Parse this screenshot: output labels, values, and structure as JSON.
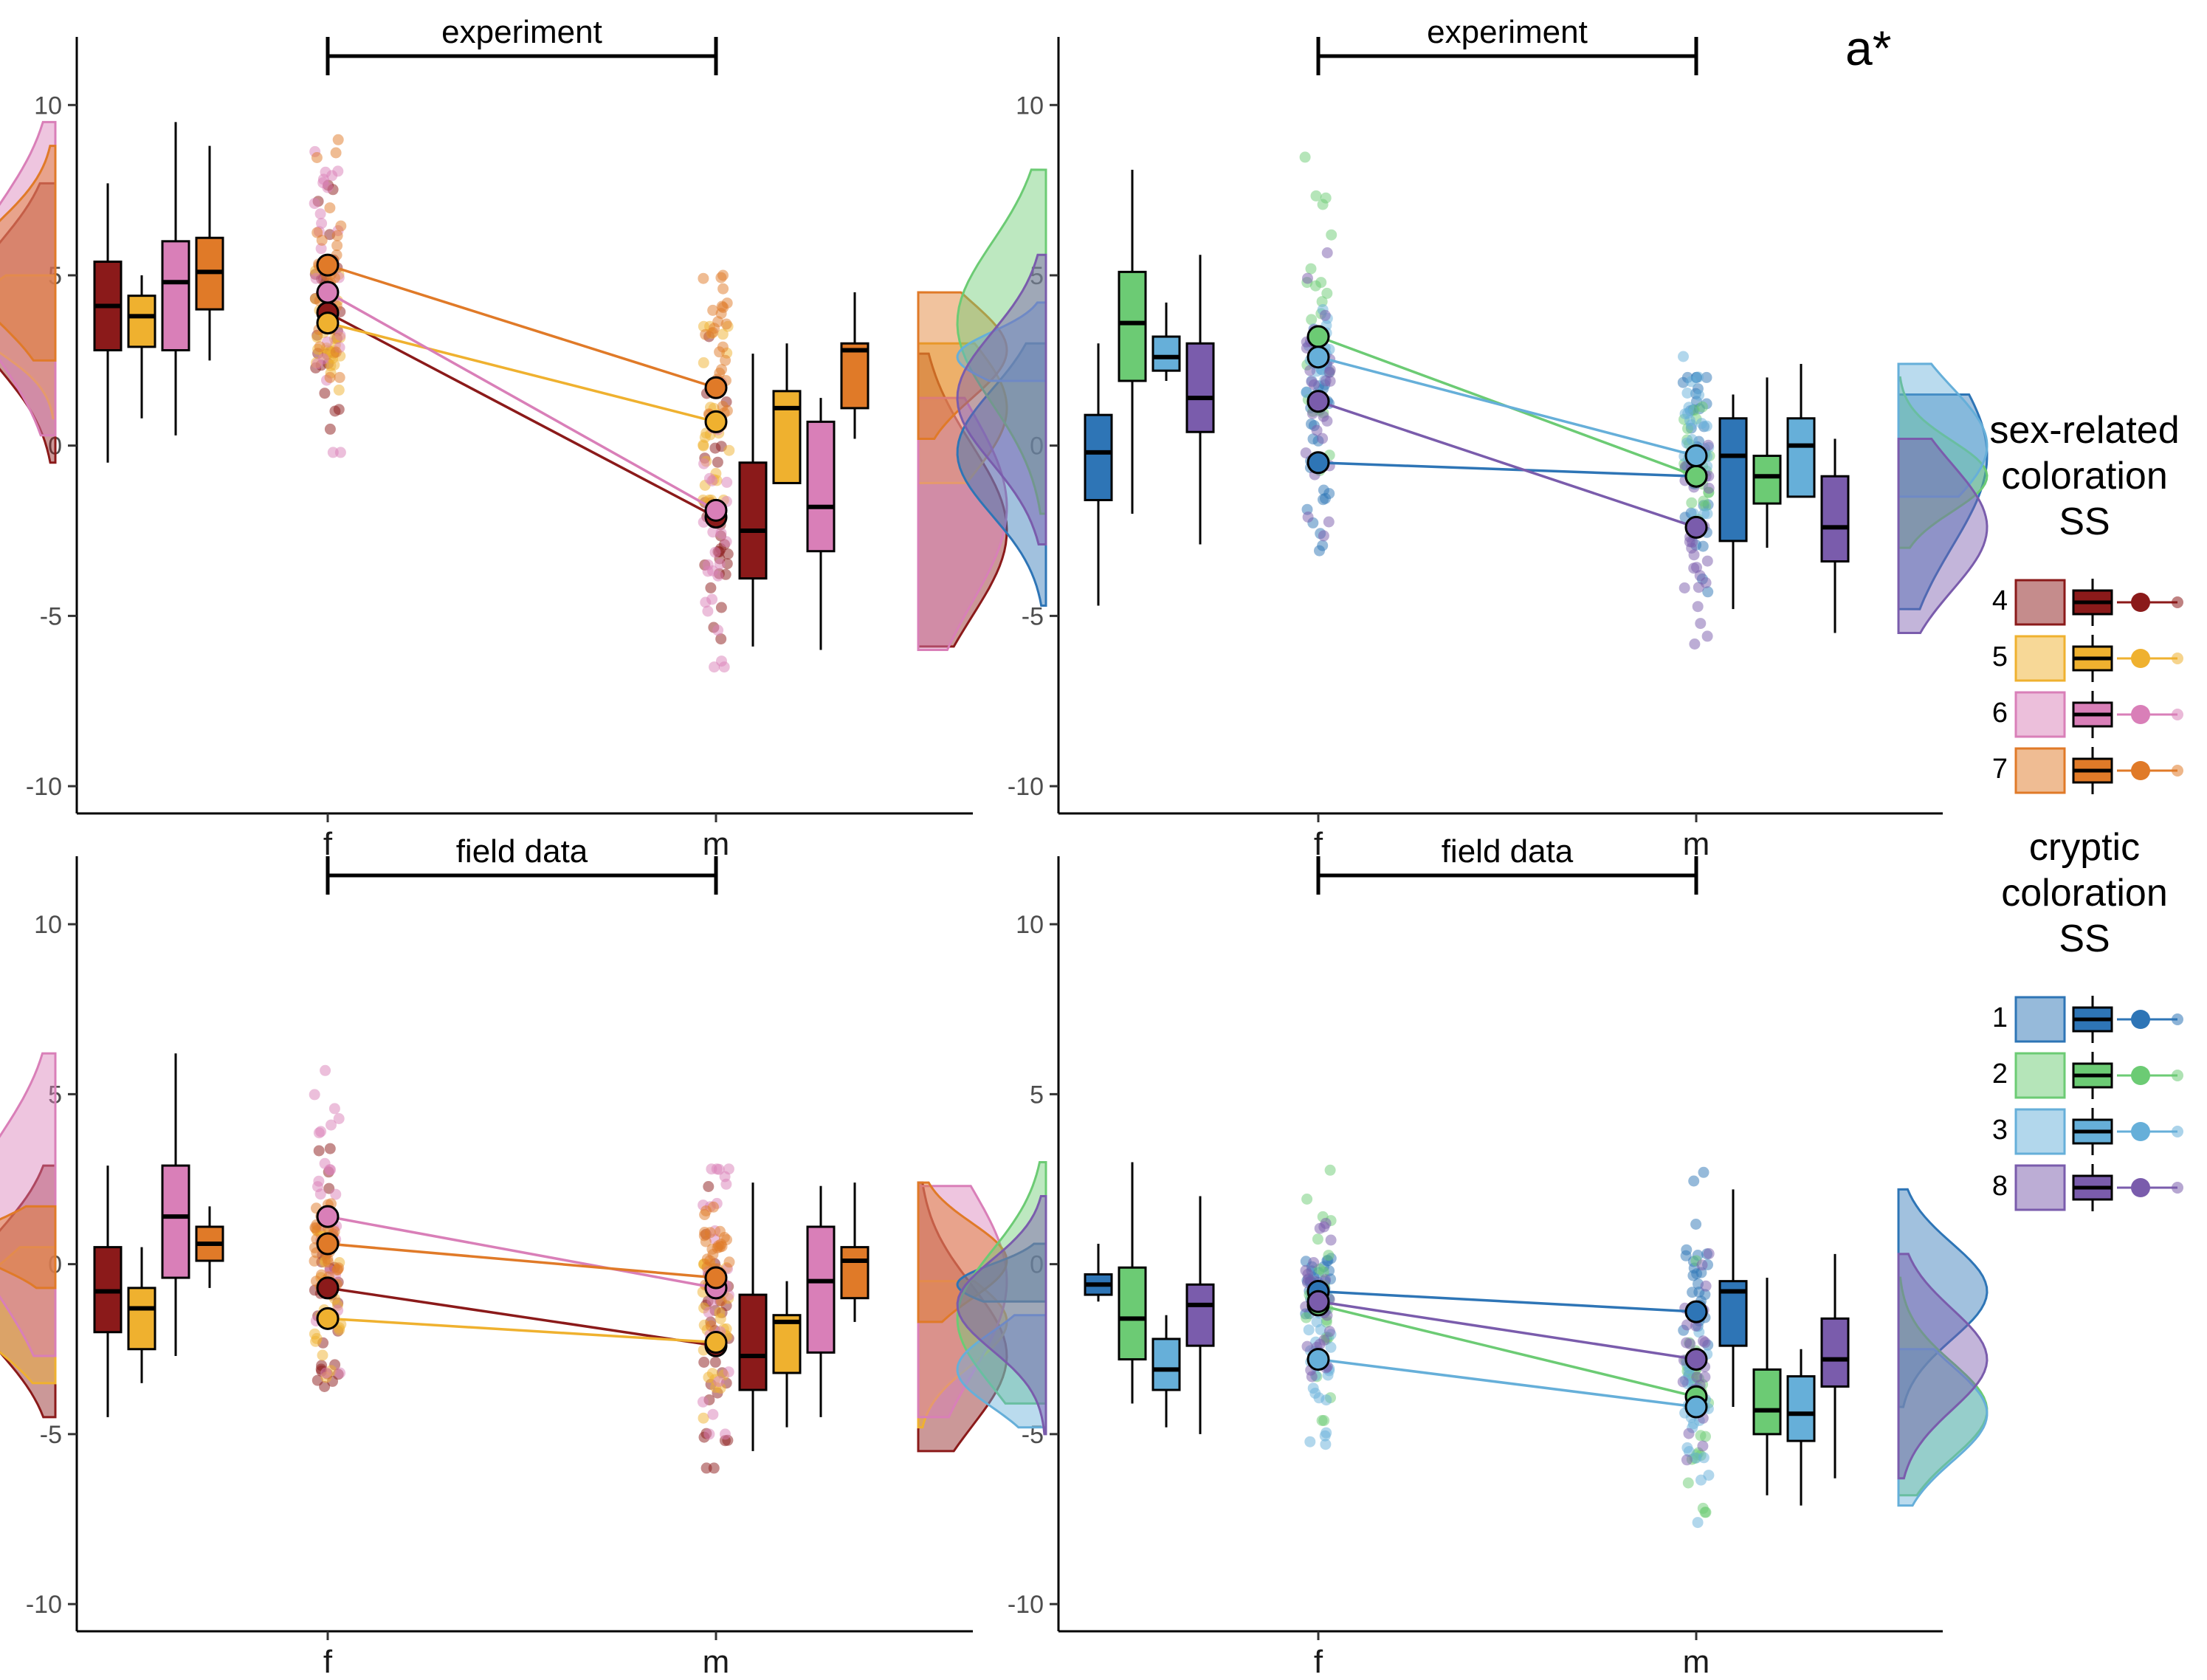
{
  "figure_tag": "a*",
  "colors": {
    "1": "#2e75b6",
    "2": "#6ccb74",
    "3": "#66afd9",
    "8": "#7a5cac",
    "4": "#8b1a1a",
    "5": "#efb12f",
    "6": "#d97fb8",
    "7": "#e07a28"
  },
  "legends": [
    {
      "id": "sex",
      "title_lines": [
        "sex-related",
        "coloration",
        "SS"
      ],
      "keys": [
        {
          "label": "4",
          "code": "4"
        },
        {
          "label": "5",
          "code": "5"
        },
        {
          "label": "6",
          "code": "6"
        },
        {
          "label": "7",
          "code": "7"
        }
      ]
    },
    {
      "id": "cryptic",
      "title_lines": [
        "cryptic",
        "coloration",
        "SS"
      ],
      "keys": [
        {
          "label": "1",
          "code": "1"
        },
        {
          "label": "2",
          "code": "2"
        },
        {
          "label": "3",
          "code": "3"
        },
        {
          "label": "8",
          "code": "8"
        }
      ]
    }
  ],
  "chart_data": [
    {
      "type": "box",
      "panel": "top-left",
      "bracket_label": "experiment",
      "categories": [
        "f",
        "m"
      ],
      "ylim": [
        -10.8,
        12
      ],
      "yticks": [
        -10,
        -5,
        0,
        5,
        10
      ],
      "series": [
        {
          "code": "4",
          "f": {
            "min": -0.5,
            "q1": 2.8,
            "median": 4.1,
            "q3": 5.4,
            "max": 7.7,
            "mean": 3.9
          },
          "m": {
            "min": -5.9,
            "q1": -3.9,
            "median": -2.5,
            "q3": -0.5,
            "max": 2.7,
            "mean": -2.1
          }
        },
        {
          "code": "5",
          "f": {
            "min": 0.8,
            "q1": 2.9,
            "median": 3.8,
            "q3": 4.4,
            "max": 5.0,
            "mean": 3.6
          },
          "m": {
            "min": -1.1,
            "q1": -1.1,
            "median": 1.1,
            "q3": 1.6,
            "max": 3.0,
            "mean": 0.7
          }
        },
        {
          "code": "6",
          "f": {
            "min": 0.3,
            "q1": 2.8,
            "median": 4.8,
            "q3": 6.0,
            "max": 9.5,
            "mean": 4.5
          },
          "m": {
            "min": -6.0,
            "q1": -3.1,
            "median": -1.8,
            "q3": 0.7,
            "max": 1.4,
            "mean": -1.9
          }
        },
        {
          "code": "7",
          "f": {
            "min": 2.5,
            "q1": 4.0,
            "median": 5.1,
            "q3": 6.1,
            "max": 8.8,
            "mean": 5.3
          },
          "m": {
            "min": 0.2,
            "q1": 1.1,
            "median": 2.8,
            "q3": 3.0,
            "max": 4.5,
            "mean": 1.7
          }
        }
      ]
    },
    {
      "type": "box",
      "panel": "top-right",
      "bracket_label": "experiment",
      "categories": [
        "f",
        "m"
      ],
      "ylim": [
        -10.8,
        12
      ],
      "yticks": [
        -10,
        -5,
        0,
        5,
        10
      ],
      "series": [
        {
          "code": "1",
          "f": {
            "min": -4.7,
            "q1": -1.6,
            "median": -0.2,
            "q3": 0.9,
            "max": 3.0,
            "mean": -0.5
          },
          "m": {
            "min": -4.8,
            "q1": -2.8,
            "median": -0.3,
            "q3": 0.8,
            "max": 1.5,
            "mean": -0.9
          }
        },
        {
          "code": "2",
          "f": {
            "min": -2.0,
            "q1": 1.9,
            "median": 3.6,
            "q3": 5.1,
            "max": 8.1,
            "mean": 3.2
          },
          "m": {
            "min": -3.0,
            "q1": -1.7,
            "median": -0.9,
            "q3": -0.3,
            "max": 2.0,
            "mean": -0.9
          }
        },
        {
          "code": "3",
          "f": {
            "min": 1.9,
            "q1": 2.2,
            "median": 2.6,
            "q3": 3.2,
            "max": 4.2,
            "mean": 2.6
          },
          "m": {
            "min": -1.5,
            "q1": -1.5,
            "median": 0.0,
            "q3": 0.8,
            "max": 2.4,
            "mean": -0.3
          }
        },
        {
          "code": "8",
          "f": {
            "min": -2.9,
            "q1": 0.4,
            "median": 1.4,
            "q3": 3.0,
            "max": 5.6,
            "mean": 1.3
          },
          "m": {
            "min": -5.5,
            "q1": -3.4,
            "median": -2.4,
            "q3": -0.9,
            "max": 0.2,
            "mean": -2.4
          }
        }
      ]
    },
    {
      "type": "box",
      "panel": "bottom-left",
      "bracket_label": "field data",
      "categories": [
        "f",
        "m"
      ],
      "ylim": [
        -10.8,
        12
      ],
      "yticks": [
        -10,
        -5,
        0,
        5,
        10
      ],
      "series": [
        {
          "code": "4",
          "f": {
            "min": -4.5,
            "q1": -2.0,
            "median": -0.8,
            "q3": 0.5,
            "max": 2.9,
            "mean": -0.7
          },
          "m": {
            "min": -5.5,
            "q1": -3.7,
            "median": -2.7,
            "q3": -0.9,
            "max": 2.4,
            "mean": -2.4
          }
        },
        {
          "code": "5",
          "f": {
            "min": -3.5,
            "q1": -2.5,
            "median": -1.3,
            "q3": -0.7,
            "max": 0.5,
            "mean": -1.6
          },
          "m": {
            "min": -4.8,
            "q1": -3.2,
            "median": -1.7,
            "q3": -1.5,
            "max": -0.5,
            "mean": -2.3
          }
        },
        {
          "code": "6",
          "f": {
            "min": -2.7,
            "q1": -0.4,
            "median": 1.4,
            "q3": 2.9,
            "max": 6.2,
            "mean": 1.4
          },
          "m": {
            "min": -4.5,
            "q1": -2.6,
            "median": -0.5,
            "q3": 1.1,
            "max": 2.3,
            "mean": -0.7
          }
        },
        {
          "code": "7",
          "f": {
            "min": -0.7,
            "q1": 0.1,
            "median": 0.6,
            "q3": 1.1,
            "max": 1.7,
            "mean": 0.6
          },
          "m": {
            "min": -1.7,
            "q1": -1.0,
            "median": 0.1,
            "q3": 0.5,
            "max": 2.4,
            "mean": -0.4
          }
        }
      ]
    },
    {
      "type": "box",
      "panel": "bottom-right",
      "bracket_label": "field data",
      "categories": [
        "f",
        "m"
      ],
      "ylim": [
        -10.8,
        12
      ],
      "yticks": [
        -10,
        -5,
        0,
        5,
        10
      ],
      "series": [
        {
          "code": "1",
          "f": {
            "min": -1.1,
            "q1": -0.9,
            "median": -0.6,
            "q3": -0.3,
            "max": 0.6,
            "mean": -0.8
          },
          "m": {
            "min": -4.2,
            "q1": -2.4,
            "median": -0.8,
            "q3": -0.5,
            "max": 2.2,
            "mean": -1.4
          }
        },
        {
          "code": "2",
          "f": {
            "min": -4.1,
            "q1": -2.8,
            "median": -1.6,
            "q3": -0.1,
            "max": 3.0,
            "mean": -1.2
          },
          "m": {
            "min": -6.8,
            "q1": -5.0,
            "median": -4.3,
            "q3": -3.1,
            "max": -0.4,
            "mean": -3.9
          }
        },
        {
          "code": "3",
          "f": {
            "min": -4.8,
            "q1": -3.7,
            "median": -3.1,
            "q3": -2.2,
            "max": -1.5,
            "mean": -2.8
          },
          "m": {
            "min": -7.1,
            "q1": -5.2,
            "median": -4.4,
            "q3": -3.3,
            "max": -2.5,
            "mean": -4.2
          }
        },
        {
          "code": "8",
          "f": {
            "min": -5.0,
            "q1": -2.4,
            "median": -1.2,
            "q3": -0.6,
            "max": 2.0,
            "mean": -1.1
          },
          "m": {
            "min": -6.3,
            "q1": -3.6,
            "median": -2.8,
            "q3": -1.6,
            "max": 0.3,
            "mean": -2.8
          }
        }
      ]
    }
  ]
}
